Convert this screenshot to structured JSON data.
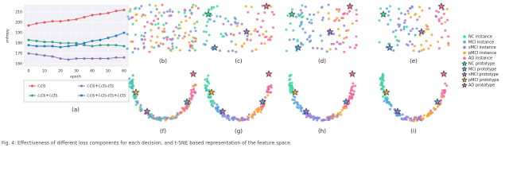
{
  "chart_data": {
    "type": "line",
    "y_label": "entropy",
    "x_label": "epoch",
    "panel_label": "(a)",
    "x": [
      0,
      5,
      10,
      15,
      20,
      25,
      30,
      35,
      40,
      45,
      50,
      55,
      60
    ],
    "xlim": [
      -3,
      63
    ],
    "xticks": [
      0,
      10,
      20,
      30,
      40,
      50,
      60
    ],
    "ylim": [
      157,
      217
    ],
    "yticks": [
      160,
      170,
      180,
      190,
      200,
      210
    ],
    "grid": true,
    "series": [
      {
        "name": "ℒcls",
        "color": "#e8545c",
        "values": [
          197,
          199,
          200,
          201,
          201,
          202,
          203,
          205,
          207,
          208,
          209,
          211,
          212
        ]
      },
      {
        "name": "ℒcls+ℒcls-cts",
        "color": "#8c6bb1",
        "values": [
          170,
          169,
          168,
          167,
          165,
          164,
          165,
          165,
          165,
          165,
          165,
          166,
          166
        ]
      },
      {
        "name": "ℒcls+ℒcts",
        "color": "#2e9e7e",
        "values": [
          183,
          182,
          181,
          181,
          180,
          180,
          180,
          178,
          177,
          178,
          178,
          178,
          177
        ]
      },
      {
        "name": "ℒcls+ℒcls-cts+ℒcts",
        "color": "#1f77c4",
        "values": [
          178,
          177,
          177,
          177,
          176,
          177,
          178,
          180,
          182,
          183,
          185,
          187,
          190
        ]
      }
    ]
  },
  "panels": [
    "(b)",
    "(c)",
    "(d)",
    "(e)",
    "(f)",
    "(g)",
    "(h)",
    "(i)"
  ],
  "legend": [
    {
      "label": "NC instance",
      "color": "#3cd6a0"
    },
    {
      "label": "MCI instance",
      "color": "#5aa0e6"
    },
    {
      "label": "sMCI instance",
      "color": "#a07ad6"
    },
    {
      "label": "pMCI instance",
      "color": "#f5a431"
    },
    {
      "label": "AD instance",
      "color": "#f06a9a"
    },
    {
      "label": "NC prototype",
      "color": "#3cd6a0"
    },
    {
      "label": "MCI prototype",
      "color": "#5aa0e6"
    },
    {
      "label": "sMCI prototype",
      "color": "#a07ad6"
    },
    {
      "label": "pMCI prototype",
      "color": "#f5a431"
    },
    {
      "label": "AD prototype",
      "color": "#f06a9a"
    }
  ],
  "caption": "Fig. 4: Effectiveness of different loss components for each decision, and t-SNE based representation of the feature space."
}
